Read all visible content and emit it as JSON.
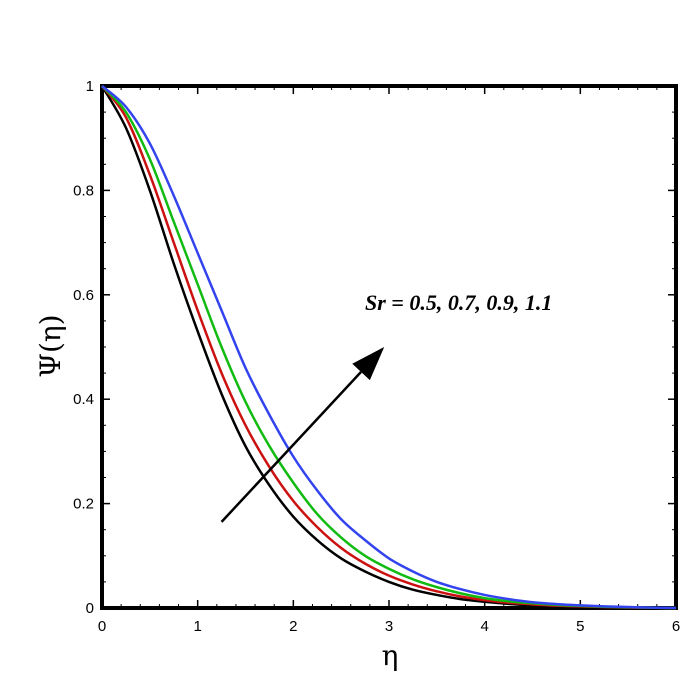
{
  "chart_data": {
    "type": "line",
    "xlabel": "η",
    "ylabel": "Ψ(η)",
    "xlim": [
      0,
      6
    ],
    "ylim": [
      0,
      1
    ],
    "x_ticks": [
      "0",
      "1",
      "2",
      "3",
      "4",
      "5",
      "6"
    ],
    "y_ticks": [
      "0",
      "0.2",
      "0.4",
      "0.6",
      "0.8",
      "1"
    ],
    "grid": false,
    "annotation": "Sr = 0.5, 0.7, 0.9, 1.1",
    "x": [
      0,
      0.25,
      0.5,
      0.75,
      1,
      1.25,
      1.5,
      1.75,
      2,
      2.25,
      2.5,
      2.75,
      3,
      3.25,
      3.5,
      3.75,
      4,
      4.25,
      4.5,
      4.75,
      5,
      5.25,
      5.5,
      5.75,
      6
    ],
    "series": [
      {
        "color": "#000000",
        "values": [
          1,
          0.92,
          0.8,
          0.66,
          0.53,
          0.41,
          0.31,
          0.235,
          0.175,
          0.13,
          0.095,
          0.07,
          0.05,
          0.035,
          0.025,
          0.017,
          0.012,
          0.008,
          0.005,
          0.003,
          0.002,
          0.001,
          0.0005,
          0.0002,
          0
        ]
      },
      {
        "color": "#cc1111",
        "values": [
          1,
          0.94,
          0.83,
          0.7,
          0.57,
          0.45,
          0.35,
          0.27,
          0.205,
          0.155,
          0.115,
          0.085,
          0.062,
          0.045,
          0.032,
          0.022,
          0.015,
          0.01,
          0.007,
          0.0045,
          0.003,
          0.0018,
          0.001,
          0.0004,
          0
        ]
      },
      {
        "color": "#11bb11",
        "values": [
          1,
          0.95,
          0.86,
          0.74,
          0.62,
          0.5,
          0.395,
          0.31,
          0.24,
          0.18,
          0.135,
          0.1,
          0.075,
          0.055,
          0.04,
          0.028,
          0.019,
          0.013,
          0.009,
          0.006,
          0.004,
          0.0025,
          0.0015,
          0.0006,
          0
        ]
      },
      {
        "color": "#3344ee",
        "values": [
          1,
          0.96,
          0.89,
          0.79,
          0.68,
          0.57,
          0.46,
          0.37,
          0.29,
          0.225,
          0.17,
          0.13,
          0.095,
          0.07,
          0.05,
          0.036,
          0.025,
          0.017,
          0.011,
          0.0075,
          0.005,
          0.003,
          0.0018,
          0.0008,
          0
        ]
      }
    ],
    "arrow": {
      "from": [
        1.25,
        0.165
      ],
      "to": [
        2.95,
        0.5
      ]
    }
  }
}
